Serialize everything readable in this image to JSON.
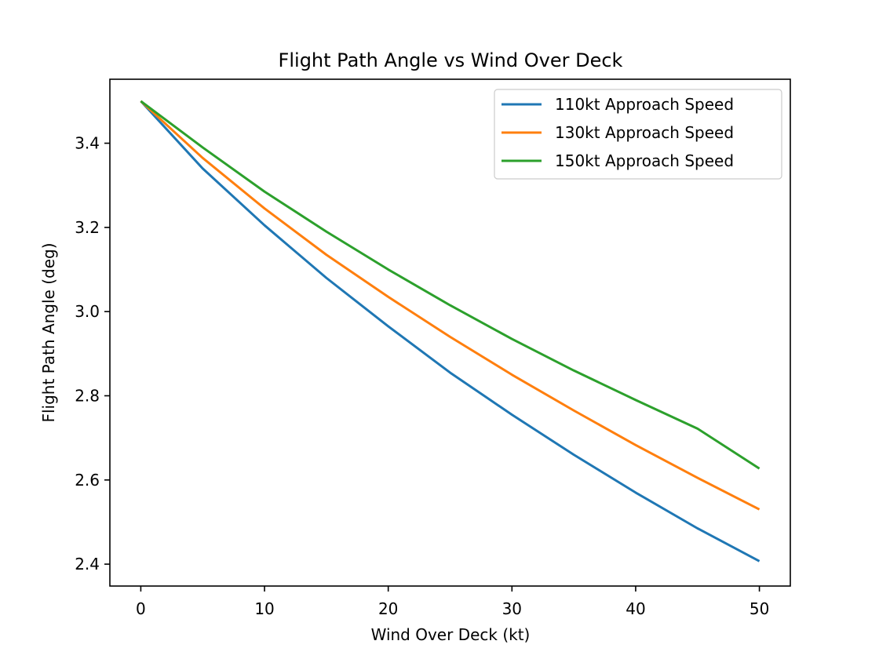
{
  "chart_data": {
    "type": "line",
    "title": "Flight Path Angle vs Wind Over Deck",
    "xlabel": "Wind Over Deck (kt)",
    "ylabel": "Flight Path Angle (deg)",
    "xlim": [
      -2.5,
      52.5
    ],
    "ylim": [
      2.348,
      3.552
    ],
    "xticks": [
      0,
      10,
      20,
      30,
      40,
      50
    ],
    "yticks": [
      2.4,
      2.6,
      2.8,
      3.0,
      3.2,
      3.4
    ],
    "xtick_labels": [
      "0",
      "10",
      "20",
      "30",
      "40",
      "50"
    ],
    "ytick_labels": [
      "2.4",
      "2.6",
      "2.8",
      "3.0",
      "3.2",
      "3.4"
    ],
    "grid": false,
    "legend_position": "top-right",
    "x": [
      0,
      5,
      10,
      15,
      20,
      25,
      30,
      35,
      40,
      45,
      50
    ],
    "series": [
      {
        "name": "110kt Approach Speed",
        "color": "#1f77b4",
        "values": [
          3.5,
          3.34,
          3.205,
          3.08,
          2.965,
          2.855,
          2.755,
          2.66,
          2.57,
          2.485,
          2.407
        ]
      },
      {
        "name": "130kt Approach Speed",
        "color": "#ff7f0e",
        "values": [
          3.5,
          3.365,
          3.245,
          3.135,
          3.035,
          2.94,
          2.85,
          2.765,
          2.683,
          2.605,
          2.53
        ]
      },
      {
        "name": "150kt Approach Speed",
        "color": "#2ca02c",
        "values": [
          3.5,
          3.39,
          3.285,
          3.19,
          3.1,
          3.015,
          2.935,
          2.86,
          2.79,
          2.722,
          2.627
        ]
      }
    ]
  }
}
